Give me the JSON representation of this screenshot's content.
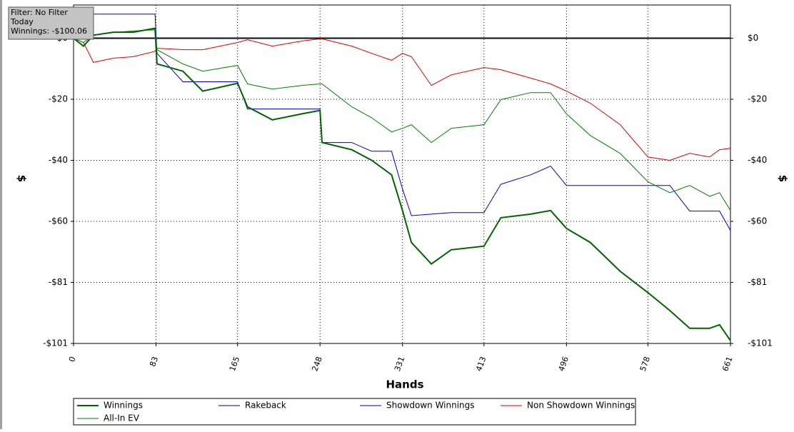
{
  "chart_data": {
    "type": "line",
    "x_label": "Hands",
    "y_label": "$",
    "x": [
      0,
      10,
      20,
      40,
      60,
      82,
      84,
      110,
      130,
      165,
      175,
      200,
      230,
      248,
      250,
      280,
      300,
      320,
      331,
      340,
      360,
      380,
      413,
      430,
      460,
      480,
      496,
      520,
      550,
      578,
      600,
      620,
      640,
      650,
      661
    ],
    "series": [
      {
        "name": "Winnings",
        "color": "#006400",
        "values": [
          0,
          -2.6,
          1,
          2,
          2,
          3.3,
          -8.5,
          -10.9,
          -17.5,
          -14.9,
          -22.7,
          -27,
          -25,
          -23.9,
          -34.5,
          -36.9,
          -40.4,
          -45.2,
          -57,
          -67.6,
          -74.7,
          -70,
          -68.8,
          -59.4,
          -58.2,
          -57,
          -62.9,
          -67.6,
          -77.1,
          -84.2,
          -90.1,
          -96,
          -96,
          -94.8,
          -100.06
        ]
      },
      {
        "name": "Rakeback",
        "color": "#00008b",
        "values": [
          0,
          0,
          0,
          0,
          0,
          0,
          0,
          0,
          0,
          0,
          0,
          0,
          0,
          0,
          0,
          0,
          0,
          0,
          0,
          0,
          0,
          0,
          0,
          0,
          0,
          0,
          0,
          0,
          0,
          0,
          0,
          0,
          0,
          0,
          0
        ]
      },
      {
        "name": "Showdown Winnings",
        "color": "#0000cc",
        "values": [
          0,
          8,
          8,
          8,
          8,
          8,
          -5,
          -14.4,
          -14.4,
          -14.4,
          -23.4,
          -23.4,
          -23.4,
          -23.4,
          -34.5,
          -34.5,
          -37.4,
          -37.4,
          -49.9,
          -58.7,
          -58.2,
          -57.7,
          -57.7,
          -48.3,
          -45.2,
          -42.3,
          -48.7,
          -48.7,
          -48.7,
          -48.7,
          -48.7,
          -57.2,
          -57.2,
          -57.2,
          -63.6
        ]
      },
      {
        "name": "Non Showdown Winnings",
        "color": "#dd0000",
        "values": [
          0,
          -1.4,
          -8,
          -6.6,
          -6.1,
          -4.3,
          -3.3,
          -3.8,
          -3.8,
          -1.4,
          -0.5,
          -2.6,
          -0.9,
          -0.2,
          -0.2,
          -2.6,
          -5,
          -7.3,
          -5,
          -6.1,
          -15.6,
          -12.1,
          -9.7,
          -10.4,
          -13.2,
          -15.1,
          -17.5,
          -21.5,
          -28.6,
          -39.3,
          -40.4,
          -38.1,
          -39.3,
          -36.9,
          -36.4
        ]
      },
      {
        "name": "All-In EV",
        "color": "#008000",
        "values": [
          0,
          -1.4,
          1,
          1.9,
          2.4,
          2.8,
          -3.8,
          -8.5,
          -10.9,
          -9,
          -15.1,
          -16.8,
          -15.6,
          -15.1,
          -15.1,
          -22.7,
          -26.3,
          -31,
          -29.8,
          -28.6,
          -34.5,
          -29.8,
          -28.6,
          -20.3,
          -18,
          -18,
          -25,
          -32.2,
          -38.1,
          -47.5,
          -51.1,
          -48.7,
          -52.3,
          -51.1,
          -57
        ]
      }
    ],
    "xlim": [
      0,
      661
    ],
    "xticks": [
      0,
      83,
      165,
      248,
      331,
      413,
      496,
      578,
      661
    ],
    "ylim": [
      -101,
      11
    ],
    "yticks": [
      {
        "value": 0,
        "label": "$0"
      },
      {
        "value": -20.2,
        "label": "-$20"
      },
      {
        "value": -40.4,
        "label": "-$40"
      },
      {
        "value": -60.6,
        "label": "-$60"
      },
      {
        "value": -80.8,
        "label": "-$81"
      },
      {
        "value": -101,
        "label": "-$101"
      }
    ],
    "grid": true,
    "tooltip": [
      "Filter: No Filter",
      "Today",
      "Winnings: -$100.06"
    ]
  }
}
